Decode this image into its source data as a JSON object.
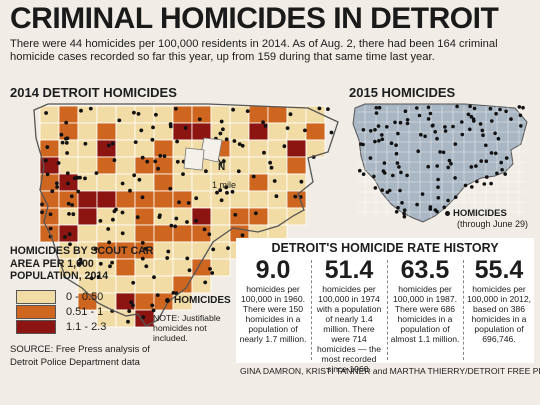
{
  "headline": "CRIMINAL HOMICIDES IN DETROIT",
  "intro": "There were 44 homicides per 100,000 residents in 2014. As of Aug. 2, there had been 164 criminal homicide cases recorded so far this year, up from 159 during that same time last year.",
  "map2014": {
    "title": "2014 DETROIT HOMICIDES",
    "north_label": "N",
    "scale_label": "1 mile",
    "homicides_label": "HOMICIDES",
    "note": "NOTE: Justifiable homicides not included."
  },
  "map2015": {
    "title": "2015 HOMICIDES",
    "homicides_label": "HOMICIDES",
    "homicides_sub": "(through June 29)"
  },
  "legend": {
    "title": "HOMICIDES BY SCOUT CAR AREA PER 1,000 POPULATION, 2014",
    "items": [
      {
        "label": "0 - 0.50",
        "color": "#f2dca5"
      },
      {
        "label": "0.51 - 1",
        "color": "#cf6620"
      },
      {
        "label": "1.1 - 2.3",
        "color": "#8c1512"
      }
    ]
  },
  "source": "SOURCE: Free Press analysis of Detroit Police Department data",
  "rate_history": {
    "title": "DETROIT'S HOMICIDE RATE HISTORY",
    "stats": [
      {
        "value": "9.0",
        "text": "homicides per 100,000 in 1960. There were 150 homicides in a population of nearly 1.7 million."
      },
      {
        "value": "51.4",
        "text": "homicides per 100,000 in 1974 with a population of nearly 1.4 million. There were 714 homicides — the most recorded since 1960."
      },
      {
        "value": "63.5",
        "text": "homicides per 100,000 in 1987. There were 686 homicides in a population of almost 1.1 million."
      },
      {
        "value": "55.4",
        "text": "homicides per 100,000 in 2012, based on 386 homicides in a population of 696,746."
      }
    ]
  },
  "credit": "GINA DAMRON, KRISTI TANNER and MARTHA THIERRY/DETROIT FREE PRESS",
  "colors": {
    "dot": "#111111",
    "map2015_fill": "#a9b6c4",
    "city_line": "#555555"
  }
}
